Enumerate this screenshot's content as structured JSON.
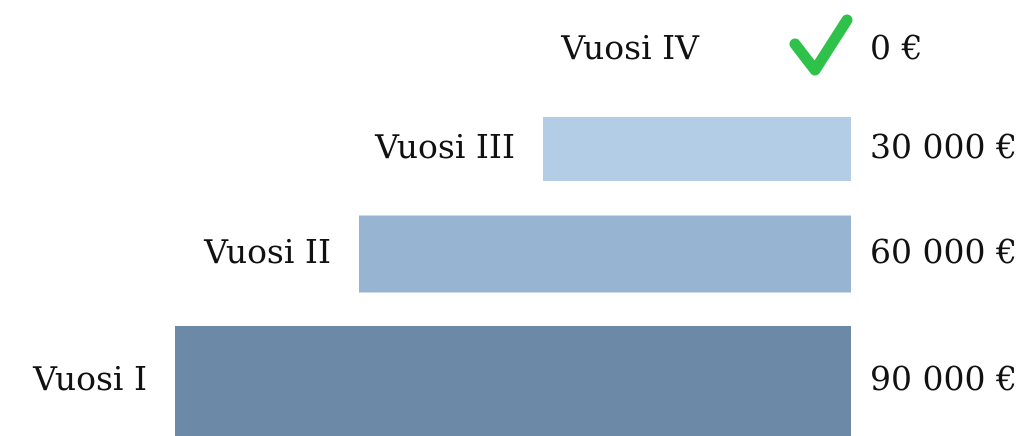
{
  "chart_data": {
    "type": "bar",
    "categories": [
      "Vuosi IV",
      "Vuosi III",
      "Vuosi II",
      "Vuosi I"
    ],
    "values": [
      0,
      30000,
      60000,
      90000
    ],
    "value_labels": [
      "0 €",
      "30 000 €",
      "60 000 €",
      "90 000 €"
    ],
    "colors": [
      "#2ec24a",
      "#b3cde6",
      "#97b4d3",
      "#6d89a8"
    ]
  }
}
